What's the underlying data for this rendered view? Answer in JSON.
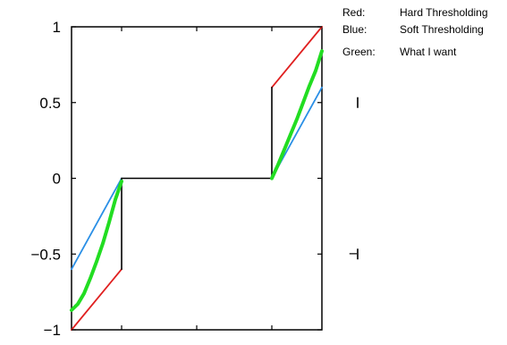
{
  "chart_data": {
    "type": "line",
    "title": "",
    "xlabel": "",
    "ylabel": "",
    "xlim": [
      -1,
      1
    ],
    "ylim": [
      -1,
      1
    ],
    "yticks": [
      {
        "value": 1,
        "label": "1"
      },
      {
        "value": 0.5,
        "label": "0.5"
      },
      {
        "value": 0,
        "label": "0"
      },
      {
        "value": -0.5,
        "label": "−0.5"
      },
      {
        "value": -1,
        "label": "−1"
      }
    ],
    "xticks": [
      -0.6,
      0,
      0.6
    ],
    "threshold": 0.6,
    "grid": false,
    "legend_position": "top-right",
    "legend": [
      {
        "key": "Red:",
        "label": "Hard Thresholding",
        "color": "#e02020"
      },
      {
        "key": "Blue:",
        "label": "Soft Thresholding",
        "color": "#2a8fe6"
      },
      {
        "key": "Green:",
        "label": "What I want",
        "color": "#22dd22"
      }
    ],
    "series": [
      {
        "id": "hard",
        "color": "#e02020",
        "segments": [
          [
            [
              -1,
              -1
            ],
            [
              -0.6,
              -0.6
            ]
          ],
          [
            [
              0.6,
              0.6
            ],
            [
              1,
              1
            ]
          ]
        ]
      },
      {
        "id": "soft",
        "color": "#2a8fe6",
        "segments": [
          [
            [
              -1,
              -0.6
            ],
            [
              -0.6,
              0
            ]
          ],
          [
            [
              0.6,
              0
            ],
            [
              1,
              0.6
            ]
          ]
        ]
      },
      {
        "id": "zero",
        "color": "#000000",
        "segments": [
          [
            [
              -0.6,
              0
            ],
            [
              0.6,
              0
            ]
          ]
        ]
      },
      {
        "id": "jump",
        "color": "#000000",
        "segments": [
          [
            [
              -0.6,
              0
            ],
            [
              -0.6,
              -0.6
            ]
          ],
          [
            [
              0.6,
              0
            ],
            [
              0.6,
              0.6
            ]
          ]
        ]
      },
      {
        "id": "desired",
        "color": "#22dd22",
        "segments": [
          [
            [
              -1,
              -0.87
            ],
            [
              -0.95,
              -0.83
            ],
            [
              -0.9,
              -0.76
            ],
            [
              -0.85,
              -0.66
            ],
            [
              -0.8,
              -0.55
            ],
            [
              -0.75,
              -0.43
            ],
            [
              -0.7,
              -0.29
            ],
            [
              -0.65,
              -0.14
            ],
            [
              -0.6,
              -0.02
            ]
          ],
          [
            [
              0.6,
              0.0
            ],
            [
              0.65,
              0.09
            ],
            [
              0.7,
              0.19
            ],
            [
              0.75,
              0.29
            ],
            [
              0.8,
              0.39
            ],
            [
              0.85,
              0.5
            ],
            [
              0.9,
              0.61
            ],
            [
              0.95,
              0.71
            ],
            [
              1,
              0.84
            ]
          ]
        ]
      }
    ],
    "side_marks": [
      0.5,
      -0.5
    ],
    "side_mark_labels": [
      "",
      "−"
    ]
  }
}
